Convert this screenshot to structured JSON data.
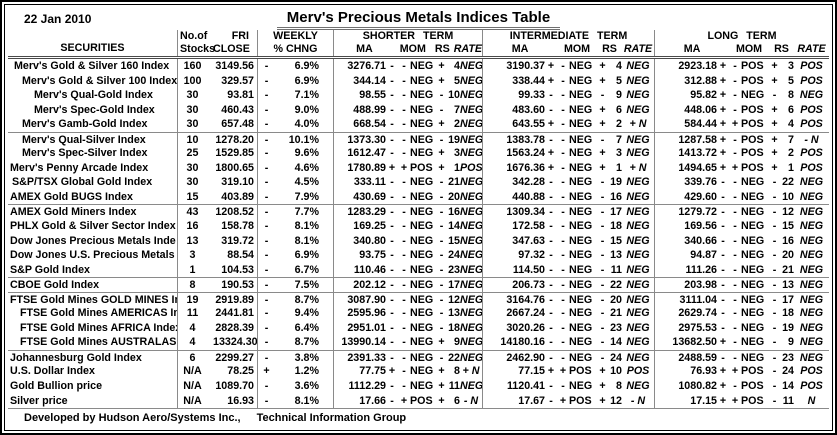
{
  "report": {
    "date": "22 Jan 2010",
    "title": "Merv's Precious Metals Indices Table",
    "footer_left": "Developed by Hudson Aero/Systems Inc.,",
    "footer_right": "Technical Information Group"
  },
  "colors": {
    "text": "#000000",
    "grid_line": "#8a8a8a",
    "header_rule": "#4a4a4a",
    "frame": "#000000",
    "background": "#ffffff"
  },
  "header": {
    "securities": "SECURITIES",
    "stocks_l1": "No.of",
    "stocks_l2": "Stocks",
    "close_l1": "FRI",
    "close_l2": "CLOSE",
    "weekly_l1": "WEEKLY",
    "weekly_l2": "% CHNG",
    "terms": [
      "SHORTER TERM",
      "INTERMEDIATE TERM",
      "LONG TERM"
    ],
    "subcols": [
      "MA",
      "MOM",
      "RS",
      "RATE"
    ]
  },
  "rows": [
    {
      "name": "Merv's Gold & Silver 160 Index",
      "indent": 4,
      "stocks": "160",
      "close": "3149.56",
      "weekly": [
        "-",
        "6.9%"
      ],
      "line": false,
      "terms": [
        [
          "3276.71",
          "-",
          "-",
          "NEG",
          "+",
          "4",
          "NEG"
        ],
        [
          "3190.37",
          "+",
          "-",
          "NEG",
          "+",
          "4",
          "NEG"
        ],
        [
          "2923.18",
          "+",
          "-",
          "POS",
          "+",
          "3",
          "POS"
        ]
      ]
    },
    {
      "name": "Merv's Gold & Silver 100 Index",
      "indent": 12,
      "stocks": "100",
      "close": "329.57",
      "weekly": [
        "-",
        "6.9%"
      ],
      "line": false,
      "terms": [
        [
          "344.14",
          "-",
          "-",
          "NEG",
          "+",
          "5",
          "NEG"
        ],
        [
          "338.44",
          "+",
          "-",
          "NEG",
          "+",
          "5",
          "NEG"
        ],
        [
          "312.88",
          "+",
          "-",
          "POS",
          "+",
          "5",
          "POS"
        ]
      ]
    },
    {
      "name": "Merv's Qual-Gold Index",
      "indent": 24,
      "stocks": "30",
      "close": "93.81",
      "weekly": [
        "-",
        "7.1%"
      ],
      "line": false,
      "terms": [
        [
          "98.55",
          "-",
          "-",
          "NEG",
          "-",
          "10",
          "NEG"
        ],
        [
          "99.33",
          "-",
          "-",
          "NEG",
          "-",
          "9",
          "NEG"
        ],
        [
          "95.82",
          "+",
          "-",
          "NEG",
          "-",
          "8",
          "NEG"
        ]
      ]
    },
    {
      "name": "Merv's Spec-Gold Index",
      "indent": 24,
      "stocks": "30",
      "close": "460.43",
      "weekly": [
        "-",
        "9.0%"
      ],
      "line": false,
      "terms": [
        [
          "488.99",
          "-",
          "-",
          "NEG",
          "-",
          "7",
          "NEG"
        ],
        [
          "483.60",
          "-",
          "-",
          "NEG",
          "+",
          "6",
          "NEG"
        ],
        [
          "448.06",
          "+",
          "-",
          "POS",
          "+",
          "6",
          "POS"
        ]
      ]
    },
    {
      "name": "Merv's Gamb-Gold Index",
      "indent": 12,
      "stocks": "30",
      "close": "657.48",
      "weekly": [
        "-",
        "4.0%"
      ],
      "line": false,
      "terms": [
        [
          "668.54",
          "-",
          "-",
          "NEG",
          "+",
          "2",
          "NEG"
        ],
        [
          "643.55",
          "+",
          "-",
          "NEG",
          "+",
          "2",
          "+ N"
        ],
        [
          "584.44",
          "+",
          "+",
          "POS",
          "+",
          "4",
          "POS"
        ]
      ]
    },
    {
      "name": "Merv's Qual-Silver Index",
      "indent": 12,
      "stocks": "10",
      "close": "1278.20",
      "weekly": [
        "-",
        "10.1%"
      ],
      "line": true,
      "terms": [
        [
          "1373.30",
          "-",
          "-",
          "NEG",
          "-",
          "19",
          "NEG"
        ],
        [
          "1383.78",
          "-",
          "-",
          "NEG",
          "-",
          "7",
          "NEG"
        ],
        [
          "1287.58",
          "+",
          "-",
          "POS",
          "+",
          "7",
          "- N"
        ]
      ]
    },
    {
      "name": "Merv's Spec-Silver Index",
      "indent": 12,
      "stocks": "25",
      "close": "1529.85",
      "weekly": [
        "-",
        "9.6%"
      ],
      "line": false,
      "terms": [
        [
          "1612.47",
          "-",
          "-",
          "NEG",
          "+",
          "3",
          "NEG"
        ],
        [
          "1563.24",
          "+",
          "-",
          "NEG",
          "+",
          "3",
          "NEG"
        ],
        [
          "1413.72",
          "+",
          "-",
          "POS",
          "+",
          "2",
          "POS"
        ]
      ]
    },
    {
      "name": "Merv's Penny Arcade Index",
      "indent": 0,
      "stocks": "30",
      "close": "1800.65",
      "weekly": [
        "-",
        "4.6%"
      ],
      "line": false,
      "terms": [
        [
          "1780.89",
          "+",
          "+",
          "POS",
          "+",
          "1",
          "POS"
        ],
        [
          "1676.36",
          "+",
          "-",
          "NEG",
          "+",
          "1",
          "+ N"
        ],
        [
          "1494.65",
          "+",
          "+",
          "POS",
          "+",
          "1",
          "POS"
        ]
      ]
    },
    {
      "name": "S&P/TSX Global Gold Index",
      "indent": 2,
      "stocks": "30",
      "close": "319.10",
      "weekly": [
        "-",
        "4.5%"
      ],
      "line": false,
      "terms": [
        [
          "333.11",
          "-",
          "-",
          "NEG",
          "-",
          "21",
          "NEG"
        ],
        [
          "342.28",
          "-",
          "-",
          "NEG",
          "-",
          "19",
          "NEG"
        ],
        [
          "339.76",
          "-",
          "-",
          "NEG",
          "-",
          "22",
          "NEG"
        ]
      ]
    },
    {
      "name": "AMEX Gold BUGS Index",
      "indent": 0,
      "stocks": "15",
      "close": "403.89",
      "weekly": [
        "-",
        "7.9%"
      ],
      "line": false,
      "terms": [
        [
          "430.69",
          "-",
          "-",
          "NEG",
          "-",
          "20",
          "NEG"
        ],
        [
          "440.88",
          "-",
          "-",
          "NEG",
          "-",
          "16",
          "NEG"
        ],
        [
          "429.60",
          "-",
          "-",
          "NEG",
          "-",
          "10",
          "NEG"
        ]
      ]
    },
    {
      "name": "AMEX Gold Miners Index",
      "indent": 0,
      "stocks": "43",
      "close": "1208.52",
      "weekly": [
        "-",
        "7.7%"
      ],
      "line": true,
      "terms": [
        [
          "1283.29",
          "-",
          "-",
          "NEG",
          "-",
          "16",
          "NEG"
        ],
        [
          "1309.34",
          "-",
          "-",
          "NEG",
          "-",
          "17",
          "NEG"
        ],
        [
          "1279.72",
          "-",
          "-",
          "NEG",
          "-",
          "12",
          "NEG"
        ]
      ]
    },
    {
      "name": "PHLX Gold & Silver Sector Index",
      "indent": 0,
      "stocks": "16",
      "close": "158.78",
      "weekly": [
        "-",
        "8.1%"
      ],
      "line": false,
      "terms": [
        [
          "169.25",
          "-",
          "-",
          "NEG",
          "-",
          "14",
          "NEG"
        ],
        [
          "172.58",
          "-",
          "-",
          "NEG",
          "-",
          "18",
          "NEG"
        ],
        [
          "169.56",
          "-",
          "-",
          "NEG",
          "-",
          "15",
          "NEG"
        ]
      ]
    },
    {
      "name": "Dow Jones Precious Metals Inde",
      "indent": 0,
      "stocks": "13",
      "close": "319.72",
      "weekly": [
        "-",
        "8.1%"
      ],
      "line": false,
      "terms": [
        [
          "340.80",
          "-",
          "-",
          "NEG",
          "-",
          "15",
          "NEG"
        ],
        [
          "347.63",
          "-",
          "-",
          "NEG",
          "-",
          "15",
          "NEG"
        ],
        [
          "340.66",
          "-",
          "-",
          "NEG",
          "-",
          "16",
          "NEG"
        ]
      ]
    },
    {
      "name": "Dow Jones U.S. Precious Metals",
      "indent": 0,
      "stocks": "3",
      "close": "88.54",
      "weekly": [
        "-",
        "6.9%"
      ],
      "line": false,
      "terms": [
        [
          "93.75",
          "-",
          "-",
          "NEG",
          "-",
          "24",
          "NEG"
        ],
        [
          "97.32",
          "-",
          "-",
          "NEG",
          "-",
          "13",
          "NEG"
        ],
        [
          "94.87",
          "-",
          "-",
          "NEG",
          "-",
          "20",
          "NEG"
        ]
      ]
    },
    {
      "name": "S&P Gold Index",
      "indent": 0,
      "stocks": "1",
      "close": "104.53",
      "weekly": [
        "-",
        "6.7%"
      ],
      "line": false,
      "terms": [
        [
          "110.46",
          "-",
          "-",
          "NEG",
          "-",
          "23",
          "NEG"
        ],
        [
          "114.50",
          "-",
          "-",
          "NEG",
          "-",
          "11",
          "NEG"
        ],
        [
          "111.26",
          "-",
          "-",
          "NEG",
          "-",
          "21",
          "NEG"
        ]
      ]
    },
    {
      "name": "CBOE Gold Index",
      "indent": 0,
      "stocks": "8",
      "close": "190.53",
      "weekly": [
        "-",
        "7.5%"
      ],
      "line": true,
      "terms": [
        [
          "202.12",
          "-",
          "-",
          "NEG",
          "-",
          "17",
          "NEG"
        ],
        [
          "206.73",
          "-",
          "-",
          "NEG",
          "-",
          "22",
          "NEG"
        ],
        [
          "203.98",
          "-",
          "-",
          "NEG",
          "-",
          "13",
          "NEG"
        ]
      ]
    },
    {
      "name": "FTSE Gold Mines GOLD MINES In",
      "indent": 0,
      "stocks": "19",
      "close": "2919.89",
      "weekly": [
        "-",
        "8.7%"
      ],
      "line": true,
      "terms": [
        [
          "3087.90",
          "-",
          "-",
          "NEG",
          "-",
          "12",
          "NEG"
        ],
        [
          "3164.76",
          "-",
          "-",
          "NEG",
          "-",
          "20",
          "NEG"
        ],
        [
          "3111.04",
          "-",
          "-",
          "NEG",
          "-",
          "17",
          "NEG"
        ]
      ]
    },
    {
      "name": "FTSE Gold Mines AMERICAS In",
      "indent": 10,
      "stocks": "11",
      "close": "2441.81",
      "weekly": [
        "-",
        "9.4%"
      ],
      "line": false,
      "terms": [
        [
          "2595.96",
          "-",
          "-",
          "NEG",
          "-",
          "13",
          "NEG"
        ],
        [
          "2667.24",
          "-",
          "-",
          "NEG",
          "-",
          "21",
          "NEG"
        ],
        [
          "2629.74",
          "-",
          "-",
          "NEG",
          "-",
          "18",
          "NEG"
        ]
      ]
    },
    {
      "name": "FTSE Gold Mines AFRICA Index",
      "indent": 10,
      "stocks": "4",
      "close": "2828.39",
      "weekly": [
        "-",
        "6.4%"
      ],
      "line": false,
      "terms": [
        [
          "2951.01",
          "-",
          "-",
          "NEG",
          "-",
          "18",
          "NEG"
        ],
        [
          "3020.26",
          "-",
          "-",
          "NEG",
          "-",
          "23",
          "NEG"
        ],
        [
          "2975.53",
          "-",
          "-",
          "NEG",
          "-",
          "19",
          "NEG"
        ]
      ]
    },
    {
      "name": "FTSE Gold Mines AUSTRALASI",
      "indent": 10,
      "stocks": "4",
      "close": "13324.30",
      "weekly": [
        "-",
        "8.7%"
      ],
      "line": false,
      "terms": [
        [
          "13990.14",
          "-",
          "-",
          "NEG",
          "+",
          "9",
          "NEG"
        ],
        [
          "14180.16",
          "-",
          "-",
          "NEG",
          "-",
          "14",
          "NEG"
        ],
        [
          "13682.50",
          "+",
          "-",
          "NEG",
          "-",
          "9",
          "NEG"
        ]
      ]
    },
    {
      "name": "Johannesburg Gold Index",
      "indent": 0,
      "stocks": "6",
      "close": "2299.27",
      "weekly": [
        "-",
        "3.8%"
      ],
      "line": true,
      "terms": [
        [
          "2391.33",
          "-",
          "-",
          "NEG",
          "-",
          "22",
          "NEG"
        ],
        [
          "2462.90",
          "-",
          "-",
          "NEG",
          "-",
          "24",
          "NEG"
        ],
        [
          "2488.59",
          "-",
          "-",
          "NEG",
          "-",
          "23",
          "NEG"
        ]
      ]
    },
    {
      "name": "U.S. Dollar Index",
      "indent": 0,
      "stocks": "N/A",
      "close": "78.25",
      "weekly": [
        "+",
        "1.2%"
      ],
      "line": false,
      "terms": [
        [
          "77.75",
          "+",
          "-",
          "NEG",
          "+",
          "8",
          "+ N"
        ],
        [
          "77.15",
          "+",
          "+",
          "POS",
          "+",
          "10",
          "POS"
        ],
        [
          "76.93",
          "+",
          "+",
          "POS",
          "-",
          "24",
          "POS"
        ]
      ]
    },
    {
      "name": "Gold Bullion price",
      "indent": 0,
      "stocks": "N/A",
      "close": "1089.70",
      "weekly": [
        "-",
        "3.6%"
      ],
      "line": false,
      "terms": [
        [
          "1112.29",
          "-",
          "-",
          "NEG",
          "+",
          "11",
          "NEG"
        ],
        [
          "1120.41",
          "-",
          "-",
          "NEG",
          "+",
          "8",
          "NEG"
        ],
        [
          "1080.82",
          "+",
          "-",
          "POS",
          "-",
          "14",
          "POS"
        ]
      ]
    },
    {
      "name": "Silver price",
      "indent": 0,
      "stocks": "N/A",
      "close": "16.93",
      "weekly": [
        "-",
        "8.1%"
      ],
      "line": false,
      "terms": [
        [
          "17.66",
          "-",
          "+",
          "POS",
          "+",
          "6",
          "- N"
        ],
        [
          "17.67",
          "-",
          "+",
          "POS",
          "+",
          "12",
          "- N"
        ],
        [
          "17.15",
          "+",
          "+",
          "POS",
          "-",
          "11",
          "N"
        ]
      ]
    }
  ]
}
